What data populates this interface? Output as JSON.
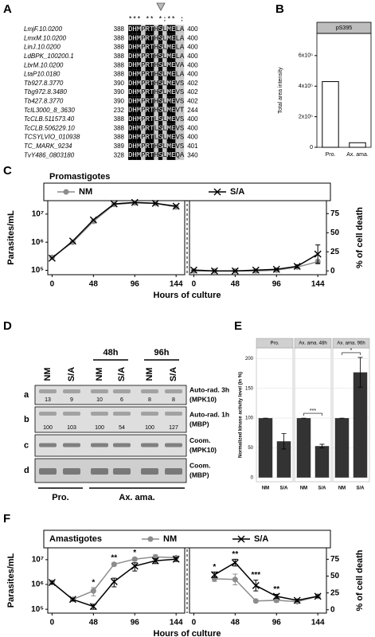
{
  "panel_labels": [
    "A",
    "B",
    "C",
    "D",
    "E",
    "F"
  ],
  "alignment": {
    "conservation": "*** ** *:** :",
    "rows": [
      {
        "name": "LmjF.10.0200",
        "start": 388,
        "sequence": "DHMPRTHSLMELA",
        "end": 400
      },
      {
        "name": "LmxM.10.0200",
        "start": 388,
        "sequence": "DHMPRTHSLMELA",
        "end": 400
      },
      {
        "name": "LinJ.10.0200",
        "start": 388,
        "sequence": "DHMPRTHSLMELA",
        "end": 400
      },
      {
        "name": "LdBPK_100200.1",
        "start": 388,
        "sequence": "DHMPRTHSLMELA",
        "end": 400
      },
      {
        "name": "LbrM.10.0200",
        "start": 388,
        "sequence": "DHMPRTHSLMEVA",
        "end": 400
      },
      {
        "name": "LtaP10.0180",
        "start": 388,
        "sequence": "DHMPRTHSLMELA",
        "end": 400
      },
      {
        "name": "Tb927.8.3770",
        "start": 390,
        "sequence": "DHMPRTHSLMEVS",
        "end": 402
      },
      {
        "name": "Tbg972.8.3480",
        "start": 390,
        "sequence": "DHMPRTHSLMEVS",
        "end": 402
      },
      {
        "name": "Tb427.8.3770",
        "start": 390,
        "sequence": "DHMPRTHSLMEVS",
        "end": 402
      },
      {
        "name": "TcIL3000_8_3630",
        "start": 232,
        "sequence": "DHMPRTHSLMEVT",
        "end": 244
      },
      {
        "name": "TcCLB.511573.40",
        "start": 388,
        "sequence": "DHMPRTLSLMEVS",
        "end": 400
      },
      {
        "name": "TcCLB.506229.10",
        "start": 388,
        "sequence": "DHMPRTLSLMEVS",
        "end": 400
      },
      {
        "name": "TCSYLVIO_010938",
        "start": 388,
        "sequence": "DHMPRTLSLMEVS",
        "end": 400
      },
      {
        "name": "TC_MARK_9234",
        "start": 389,
        "sequence": "DHMPRTHSLMEVS",
        "end": 401
      },
      {
        "name": "TvY486_0803180",
        "start": 328,
        "sequence": "DHMPRTHSLMEQA",
        "end": 340
      }
    ]
  },
  "blot": {
    "time_labels": [
      "48h",
      "96h"
    ],
    "lanes": [
      "NM",
      "S/A",
      "NM",
      "S/A",
      "NM",
      "S/A"
    ],
    "rows": [
      {
        "letter": "a",
        "label": "Auto-rad. 3h",
        "sublabel": "(MPK10)",
        "values": [
          13,
          9,
          10,
          6,
          8,
          8
        ]
      },
      {
        "letter": "b",
        "label": "Auto-rad. 1h",
        "sublabel": "(MBP)",
        "values": [
          100,
          103,
          100,
          54,
          100,
          127
        ]
      },
      {
        "letter": "c",
        "label": "Coom.",
        "sublabel": "(MPK10)"
      },
      {
        "letter": "d",
        "label": "Coom.",
        "sublabel": "(MBP)"
      }
    ],
    "groups": [
      "Pro.",
      "Ax. ama."
    ]
  },
  "chart_data": [
    {
      "type": "bar",
      "title": "pS395",
      "y_label": "Total area intensity",
      "categories": [
        "Pro.",
        "Ax. ama."
      ],
      "values": [
        430000,
        30000
      ],
      "color": "#ffffff",
      "ylim": [
        0,
        745000
      ],
      "yticks": [
        0,
        {
          "value": 200000,
          "label": "2x10⁵"
        },
        {
          "value": 400000,
          "label": "4x10⁵"
        },
        {
          "value": 600000,
          "label": "6x10⁵"
        }
      ]
    },
    {
      "type": "line",
      "title": "Promastigotes",
      "x_label": "Hours of culture",
      "y_label": "Parasites/mL",
      "log_y": true,
      "x": [
        0,
        24,
        48,
        72,
        96,
        120,
        144
      ],
      "series": [
        {
          "name": "NM",
          "color": "#8c8c8c",
          "marker": "circle",
          "values": [
            290000,
            1000000,
            5500000,
            22000000,
            25000000,
            24000000,
            18000000
          ]
        },
        {
          "name": "S/A",
          "color": "#000000",
          "marker": "x",
          "values": [
            270000,
            1100000,
            6200000,
            23000000,
            26000000,
            24000000,
            19000000
          ]
        }
      ],
      "xlim": [
        -5,
        154
      ],
      "xticks": [
        0,
        48,
        96,
        144
      ],
      "ylim": [
        70000,
        30000000
      ],
      "yticks": [
        {
          "value": 100000,
          "label": "10⁵"
        },
        {
          "value": 1000000,
          "label": "10⁶"
        },
        {
          "value": 10000000,
          "label": "10⁷"
        }
      ]
    },
    {
      "type": "line",
      "y_label": "% of cell death",
      "x": [
        0,
        24,
        48,
        72,
        96,
        120,
        144
      ],
      "series": [
        {
          "color": "#8c8c8c",
          "marker": "circle",
          "values": [
            0,
            0,
            0,
            0,
            1,
            5,
            12
          ],
          "errors": [
            0,
            0,
            0,
            0,
            1,
            2,
            3
          ]
        },
        {
          "color": "#000000",
          "marker": "x",
          "values": [
            1,
            0,
            0,
            1,
            2,
            6,
            22
          ],
          "errors": [
            0,
            0,
            0,
            0,
            1,
            2,
            12
          ]
        }
      ],
      "xlim": [
        -5,
        154
      ],
      "xticks": [
        0,
        48,
        96,
        144
      ],
      "ylim": [
        -5,
        92
      ],
      "yticks": [
        0,
        25,
        50,
        75
      ]
    },
    {
      "type": "facet_bar",
      "y_label": "Normalized kinase activity level (in %)",
      "categories": [
        "NM",
        "S/A"
      ],
      "color": "#333333",
      "facets": [
        {
          "title": "Pro.",
          "values": [
            100,
            61
          ],
          "errors": [
            0,
            13
          ]
        },
        {
          "title": "Ax. ama. 48h",
          "values": [
            100,
            53
          ],
          "errors": [
            0,
            3
          ],
          "annotation": "***"
        },
        {
          "title": "Ax. ama. 96h",
          "values": [
            100,
            177
          ],
          "errors": [
            0,
            25
          ],
          "annotation": "*"
        }
      ],
      "ylim": [
        -7,
        218
      ],
      "yticks": [
        0,
        50,
        100,
        150,
        200
      ],
      "grid": true
    },
    {
      "type": "line",
      "title": "Amastigotes",
      "x_label": "Hours of culture",
      "y_label": "Parasites/mL",
      "log_y": true,
      "x": [
        0,
        24,
        48,
        72,
        96,
        120,
        144
      ],
      "series": [
        {
          "name": "NM",
          "color": "#8c8c8c",
          "marker": "circle",
          "values": [
            1200000,
            250000,
            550000,
            6500000,
            10500000,
            13000000,
            12000000
          ],
          "errors": [
            150000,
            30000,
            200000,
            1000000,
            1500000,
            2500000,
            1500000
          ]
        },
        {
          "name": "S/A",
          "color": "#000000",
          "marker": "x",
          "values": [
            1200000,
            250000,
            130000,
            1300000,
            5500000,
            9000000,
            10500000
          ],
          "errors": [
            150000,
            30000,
            30000,
            500000,
            2000000,
            2000000,
            2000000
          ]
        }
      ],
      "annotations": [
        {
          "x": 48,
          "text": "*"
        },
        {
          "x": 72,
          "text": "**"
        },
        {
          "x": 96,
          "text": "*"
        }
      ],
      "xlim": [
        -5,
        154
      ],
      "xticks": [
        0,
        48,
        96,
        144
      ],
      "ylim": [
        70000,
        30000000
      ],
      "yticks": [
        {
          "value": 100000,
          "label": "10⁵"
        },
        {
          "value": 1000000,
          "label": "10⁶"
        },
        {
          "value": 10000000,
          "label": "10⁷"
        }
      ]
    },
    {
      "type": "line",
      "y_label": "% of cell death",
      "x": [
        0,
        24,
        48,
        72,
        96,
        120,
        144
      ],
      "series": [
        {
          "color": "#8c8c8c",
          "marker": "circle",
          "values": [
            null,
            46,
            45,
            13,
            14,
            12,
            20
          ],
          "errors": [
            null,
            4,
            8,
            2,
            3,
            2,
            2
          ]
        },
        {
          "color": "#000000",
          "marker": "x",
          "values": [
            null,
            52,
            70,
            36,
            20,
            14,
            20
          ],
          "errors": [
            null,
            4,
            5,
            8,
            3,
            2,
            2
          ]
        }
      ],
      "annotations": [
        {
          "x": 24,
          "text": "*"
        },
        {
          "x": 48,
          "text": "**"
        },
        {
          "x": 72,
          "text": "***"
        },
        {
          "x": 96,
          "text": "**"
        }
      ],
      "xlim": [
        -5,
        154
      ],
      "xticks": [
        0,
        48,
        96,
        144
      ],
      "ylim": [
        -5,
        92
      ],
      "yticks": [
        0,
        25,
        50,
        75
      ]
    }
  ]
}
